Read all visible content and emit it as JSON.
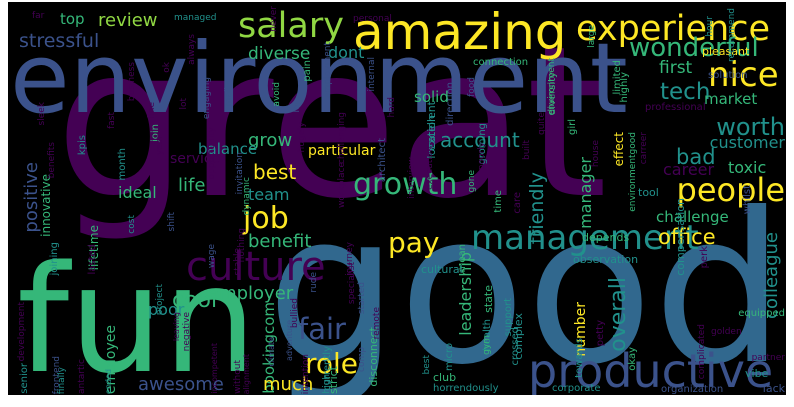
{
  "palette": {
    "purple": "#440154",
    "indigo": "#3b528b",
    "blue": "#31688e",
    "teal": "#21918c",
    "green": "#35b779",
    "lime": "#90d743",
    "yellow": "#fde725",
    "background": "#000000"
  },
  "words": [
    {
      "text": "great",
      "color": "purple"
    },
    {
      "text": "good",
      "color": "blue"
    },
    {
      "text": "environment",
      "color": "indigo"
    },
    {
      "text": "fun",
      "color": "green"
    },
    {
      "text": "amazing",
      "color": "yellow"
    },
    {
      "text": "experience",
      "color": "yellow"
    },
    {
      "text": "productive",
      "color": "indigo"
    },
    {
      "text": "culture",
      "color": "purple"
    },
    {
      "text": "salary",
      "color": "lime"
    },
    {
      "text": "nice",
      "color": "yellow"
    },
    {
      "text": "wonderful",
      "color": "green"
    },
    {
      "text": "management",
      "color": "teal"
    },
    {
      "text": "people",
      "color": "yellow"
    },
    {
      "text": "growth",
      "color": "green"
    },
    {
      "text": "job",
      "color": "yellow"
    },
    {
      "text": "pay",
      "color": "yellow"
    },
    {
      "text": "fair",
      "color": "indigo"
    },
    {
      "text": "role",
      "color": "yellow"
    },
    {
      "text": "cool",
      "color": "green"
    },
    {
      "text": "worth",
      "color": "teal"
    },
    {
      "text": "tech",
      "color": "teal"
    },
    {
      "text": "bad",
      "color": "teal"
    },
    {
      "text": "best",
      "color": "yellow"
    },
    {
      "text": "stressful",
      "color": "indigo"
    },
    {
      "text": "review",
      "color": "lime"
    },
    {
      "text": "top",
      "color": "green"
    },
    {
      "text": "diverse",
      "color": "green"
    },
    {
      "text": "dont",
      "color": "teal"
    },
    {
      "text": "first",
      "color": "green"
    },
    {
      "text": "market",
      "color": "green"
    },
    {
      "text": "account",
      "color": "teal"
    },
    {
      "text": "customer",
      "color": "teal"
    },
    {
      "text": "career",
      "color": "purple"
    },
    {
      "text": "toxic",
      "color": "green"
    },
    {
      "text": "office",
      "color": "yellow"
    },
    {
      "text": "benefit",
      "color": "green"
    },
    {
      "text": "team",
      "color": "teal"
    },
    {
      "text": "ideal",
      "color": "green"
    },
    {
      "text": "grow",
      "color": "green"
    },
    {
      "text": "balance",
      "color": "teal"
    },
    {
      "text": "life",
      "color": "green"
    },
    {
      "text": "service",
      "color": "purple"
    },
    {
      "text": "positive",
      "color": "indigo"
    },
    {
      "text": "innovative",
      "color": "green"
    },
    {
      "text": "particular",
      "color": "yellow"
    },
    {
      "text": "friendly",
      "color": "teal"
    },
    {
      "text": "manager",
      "color": "green"
    },
    {
      "text": "colleague",
      "color": "teal"
    },
    {
      "text": "overall",
      "color": "teal"
    },
    {
      "text": "employer",
      "color": "green"
    },
    {
      "text": "poor",
      "color": "teal"
    },
    {
      "text": "bookingcom",
      "color": "green"
    },
    {
      "text": "employee",
      "color": "green"
    },
    {
      "text": "awesome",
      "color": "indigo"
    },
    {
      "text": "much",
      "color": "yellow"
    },
    {
      "text": "number",
      "color": "yellow"
    },
    {
      "text": "leadership",
      "color": "green"
    },
    {
      "text": "lifetime",
      "color": "green"
    },
    {
      "text": "cost",
      "color": "teal"
    },
    {
      "text": "lasted",
      "color": "purple"
    },
    {
      "text": "month",
      "color": "teal"
    },
    {
      "text": "kpis",
      "color": "teal"
    },
    {
      "text": "join",
      "color": "green"
    },
    {
      "text": "joining",
      "color": "teal"
    },
    {
      "text": "benefits",
      "color": "purple"
    },
    {
      "text": "year",
      "color": "purple"
    },
    {
      "text": "project",
      "color": "teal"
    },
    {
      "text": "leaving",
      "color": "purple"
    },
    {
      "text": "adventure",
      "color": "indigo"
    },
    {
      "text": "climate",
      "color": "indigo"
    },
    {
      "text": "frontend",
      "color": "indigo"
    },
    {
      "text": "antartic",
      "color": "purple"
    },
    {
      "text": "senior",
      "color": "teal"
    },
    {
      "text": "ended",
      "color": "teal"
    },
    {
      "text": "finally",
      "color": "teal"
    },
    {
      "text": "wage",
      "color": "indigo"
    },
    {
      "text": "stable",
      "color": "purple"
    },
    {
      "text": "nothing",
      "color": "purple"
    },
    {
      "text": "currently",
      "color": "teal"
    },
    {
      "text": "intention",
      "color": "purple"
    },
    {
      "text": "without",
      "color": "purple"
    },
    {
      "text": "alignment",
      "color": "purple"
    },
    {
      "text": "incompetent",
      "color": "purple"
    },
    {
      "text": "high",
      "color": "teal"
    },
    {
      "text": "strict",
      "color": "green"
    },
    {
      "text": "club",
      "color": "green"
    },
    {
      "text": "horrendously",
      "color": "teal"
    },
    {
      "text": "corporate",
      "color": "teal"
    },
    {
      "text": "organization",
      "color": "indigo"
    },
    {
      "text": "lack",
      "color": "indigo"
    },
    {
      "text": "vibe",
      "color": "teal"
    },
    {
      "text": "partner",
      "color": "purple"
    },
    {
      "text": "equipped",
      "color": "green"
    },
    {
      "text": "golden",
      "color": "purple"
    },
    {
      "text": "complicated",
      "color": "purple"
    },
    {
      "text": "okay",
      "color": "green"
    },
    {
      "text": "towards",
      "color": "teal"
    },
    {
      "text": "petty",
      "color": "purple"
    },
    {
      "text": "crossed",
      "color": "teal"
    },
    {
      "text": "complex",
      "color": "teal"
    },
    {
      "text": "support",
      "color": "teal"
    },
    {
      "text": "state",
      "color": "green"
    },
    {
      "text": "health",
      "color": "teal"
    },
    {
      "text": "gym",
      "color": "green"
    },
    {
      "text": "micro",
      "color": "teal"
    },
    {
      "text": "best",
      "color": "teal"
    },
    {
      "text": "disconnect",
      "color": "green"
    },
    {
      "text": "observation",
      "color": "teal"
    },
    {
      "text": "mean",
      "color": "green"
    },
    {
      "text": "cultural",
      "color": "teal"
    },
    {
      "text": "care",
      "color": "purple"
    },
    {
      "text": "time",
      "color": "green"
    },
    {
      "text": "depends",
      "color": "green"
    },
    {
      "text": "perk",
      "color": "purple"
    },
    {
      "text": "challenge",
      "color": "green"
    },
    {
      "text": "compensation",
      "color": "teal"
    },
    {
      "text": "tool",
      "color": "teal"
    },
    {
      "text": "environmentgood",
      "color": "green"
    },
    {
      "text": "effect",
      "color": "yellow"
    },
    {
      "text": "whilst",
      "color": "indigo"
    },
    {
      "text": "carreer",
      "color": "purple"
    },
    {
      "text": "professional",
      "color": "purple"
    },
    {
      "text": "solution",
      "color": "indigo"
    },
    {
      "text": "highly",
      "color": "green"
    },
    {
      "text": "limited",
      "color": "green"
    },
    {
      "text": "pleasant",
      "color": "yellow"
    },
    {
      "text": "large",
      "color": "green"
    },
    {
      "text": "hour",
      "color": "teal"
    },
    {
      "text": "recommend",
      "color": "teal"
    },
    {
      "text": "connection",
      "color": "green"
    },
    {
      "text": "environment",
      "color": "green"
    },
    {
      "text": "internal",
      "color": "indigo"
    },
    {
      "text": "personal",
      "color": "purple"
    },
    {
      "text": "never",
      "color": "purple"
    },
    {
      "text": "managed",
      "color": "teal"
    },
    {
      "text": "always",
      "color": "purple"
    },
    {
      "text": "far",
      "color": "purple"
    },
    {
      "text": "employment",
      "color": "indigo"
    },
    {
      "text": "pain",
      "color": "green"
    },
    {
      "text": "avoid",
      "color": "green"
    },
    {
      "text": "direction",
      "color": "indigo"
    },
    {
      "text": "diversity",
      "color": "green"
    },
    {
      "text": "solid",
      "color": "green"
    },
    {
      "text": "excellent",
      "color": "teal"
    },
    {
      "text": "location",
      "color": "teal"
    },
    {
      "text": "groming",
      "color": "teal"
    },
    {
      "text": "architect",
      "color": "indigo"
    },
    {
      "text": "execution",
      "color": "purple"
    },
    {
      "text": "girl",
      "color": "green"
    },
    {
      "text": "lot",
      "color": "purple"
    },
    {
      "text": "engaging",
      "color": "indigo"
    },
    {
      "text": "food",
      "color": "indigo"
    },
    {
      "text": "mail",
      "color": "indigo"
    },
    {
      "text": "opportunity",
      "color": "purple"
    },
    {
      "text": "invitation",
      "color": "indigo"
    },
    {
      "text": "challenging",
      "color": "purple"
    },
    {
      "text": "dynamic",
      "color": "green"
    },
    {
      "text": "interview",
      "color": "purple"
    },
    {
      "text": "hard",
      "color": "purple"
    },
    {
      "text": "ask",
      "color": "purple"
    },
    {
      "text": "shift",
      "color": "indigo"
    },
    {
      "text": "rude",
      "color": "indigo"
    },
    {
      "text": "negative",
      "color": "purple"
    },
    {
      "text": "specialist",
      "color": "purple"
    },
    {
      "text": "bullied",
      "color": "purple"
    },
    {
      "text": "journey",
      "color": "purple"
    },
    {
      "text": "started",
      "color": "indigo"
    },
    {
      "text": "remote",
      "color": "purple"
    },
    {
      "text": "comp",
      "color": "indigo"
    },
    {
      "text": "ok",
      "color": "purple"
    },
    {
      "text": "business",
      "color": "purple"
    },
    {
      "text": "fast",
      "color": "purple"
    },
    {
      "text": "lol",
      "color": "indigo"
    },
    {
      "text": "hugely",
      "color": "purple"
    },
    {
      "text": "quite",
      "color": "purple"
    },
    {
      "text": "built",
      "color": "purple"
    },
    {
      "text": "house",
      "color": "purple"
    },
    {
      "text": "gone",
      "color": "green"
    },
    {
      "text": "development",
      "color": "purple"
    },
    {
      "text": "workplace",
      "color": "purple"
    },
    {
      "text": "sleek",
      "color": "purple"
    },
    {
      "text": "fine",
      "color": "purple"
    },
    {
      "text": "poorly",
      "color": "purple"
    }
  ]
}
